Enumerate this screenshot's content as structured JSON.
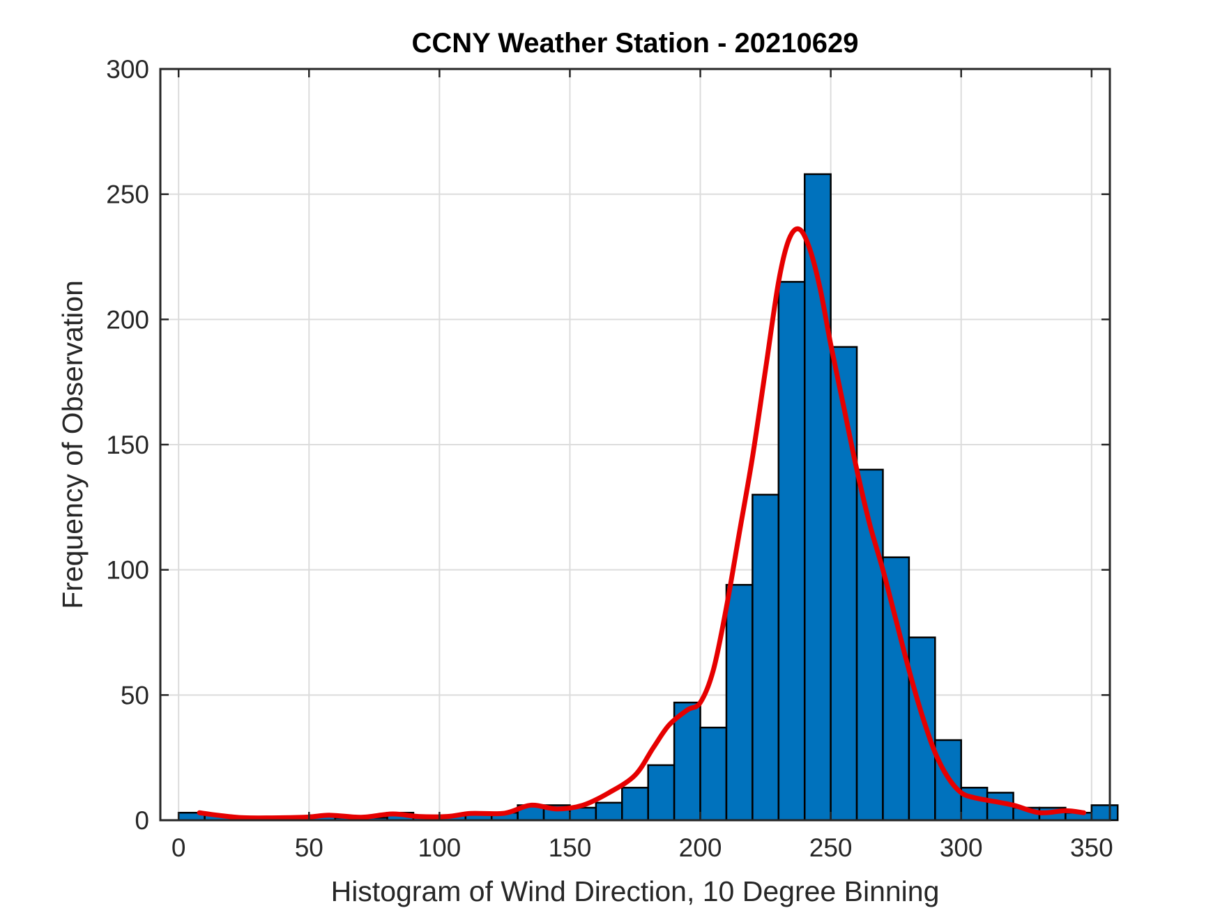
{
  "chart_data": {
    "type": "bar",
    "title": "CCNY Weather Station - 20210629",
    "xlabel": "Histogram of Wind Direction, 10 Degree Binning",
    "ylabel": "Frequency of Observation",
    "xlim": [
      -7,
      357
    ],
    "ylim": [
      0,
      300
    ],
    "xticks": [
      0,
      50,
      100,
      150,
      200,
      250,
      300,
      350
    ],
    "yticks": [
      0,
      50,
      100,
      150,
      200,
      250,
      300
    ],
    "grid": true,
    "bin_width": 10,
    "bar_color": "#0072BD",
    "bins": [
      {
        "center": 5,
        "count": 3
      },
      {
        "center": 15,
        "count": 2
      },
      {
        "center": 25,
        "count": 1
      },
      {
        "center": 35,
        "count": 1
      },
      {
        "center": 45,
        "count": 1
      },
      {
        "center": 55,
        "count": 2
      },
      {
        "center": 65,
        "count": 1
      },
      {
        "center": 75,
        "count": 1
      },
      {
        "center": 85,
        "count": 3
      },
      {
        "center": 95,
        "count": 1
      },
      {
        "center": 105,
        "count": 2
      },
      {
        "center": 115,
        "count": 3
      },
      {
        "center": 125,
        "count": 3
      },
      {
        "center": 135,
        "count": 6
      },
      {
        "center": 145,
        "count": 6
      },
      {
        "center": 155,
        "count": 5
      },
      {
        "center": 165,
        "count": 7
      },
      {
        "center": 175,
        "count": 13
      },
      {
        "center": 185,
        "count": 22
      },
      {
        "center": 195,
        "count": 47
      },
      {
        "center": 205,
        "count": 37
      },
      {
        "center": 215,
        "count": 94
      },
      {
        "center": 225,
        "count": 130
      },
      {
        "center": 235,
        "count": 215
      },
      {
        "center": 245,
        "count": 258
      },
      {
        "center": 255,
        "count": 189
      },
      {
        "center": 265,
        "count": 140
      },
      {
        "center": 275,
        "count": 105
      },
      {
        "center": 285,
        "count": 73
      },
      {
        "center": 295,
        "count": 32
      },
      {
        "center": 305,
        "count": 13
      },
      {
        "center": 315,
        "count": 11
      },
      {
        "center": 325,
        "count": 5
      },
      {
        "center": 335,
        "count": 5
      },
      {
        "center": 345,
        "count": 3
      },
      {
        "center": 355,
        "count": 6
      }
    ],
    "curve": {
      "color": "#E60000",
      "points": [
        [
          8,
          3
        ],
        [
          15,
          2
        ],
        [
          25,
          1
        ],
        [
          40,
          1
        ],
        [
          50,
          1.3
        ],
        [
          58,
          2
        ],
        [
          70,
          1.2
        ],
        [
          82,
          2.5
        ],
        [
          92,
          1.5
        ],
        [
          103,
          1.5
        ],
        [
          112,
          2.7
        ],
        [
          125,
          2.8
        ],
        [
          135,
          6
        ],
        [
          145,
          4.5
        ],
        [
          155,
          6
        ],
        [
          165,
          11
        ],
        [
          175,
          18
        ],
        [
          182,
          29
        ],
        [
          188,
          38
        ],
        [
          195,
          44
        ],
        [
          200,
          47
        ],
        [
          205,
          60
        ],
        [
          210,
          85
        ],
        [
          215,
          115
        ],
        [
          220,
          145
        ],
        [
          225,
          180
        ],
        [
          230,
          215
        ],
        [
          234,
          232
        ],
        [
          238,
          236
        ],
        [
          242,
          228
        ],
        [
          246,
          212
        ],
        [
          250,
          190
        ],
        [
          255,
          165
        ],
        [
          260,
          140
        ],
        [
          265,
          118
        ],
        [
          270,
          100
        ],
        [
          275,
          80
        ],
        [
          280,
          60
        ],
        [
          285,
          42
        ],
        [
          290,
          27
        ],
        [
          295,
          17
        ],
        [
          300,
          11
        ],
        [
          305,
          9
        ],
        [
          310,
          8
        ],
        [
          320,
          6
        ],
        [
          330,
          3
        ],
        [
          340,
          3.8
        ],
        [
          347,
          3
        ]
      ]
    }
  }
}
